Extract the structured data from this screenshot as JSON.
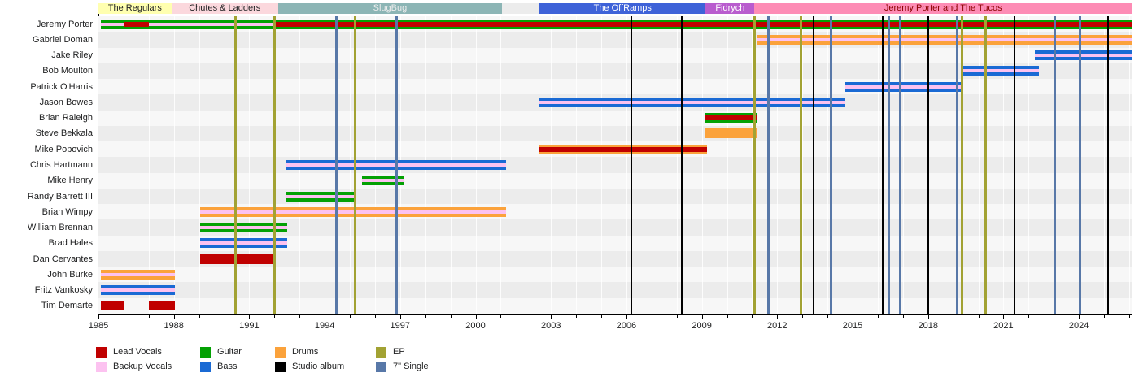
{
  "chart_data": {
    "type": "timeline",
    "description": "Band membership timeline with eras, member tenures by instrument, and release markers",
    "axis": {
      "start": 1985,
      "end": 2026.1,
      "labeled_ticks": [
        1985,
        1988,
        1991,
        1994,
        1997,
        2000,
        2003,
        2006,
        2009,
        2012,
        2015,
        2018,
        2021,
        2024
      ],
      "minor_tick_interval": 1
    },
    "eras": [
      {
        "label": "The Regulars",
        "start": 1985.0,
        "end": 1987.9,
        "bg": "#ffffb0",
        "fg": "#202122"
      },
      {
        "label": "Chutes & Ladders",
        "start": 1987.9,
        "end": 1992.15,
        "bg": "#fbd8dd",
        "fg": "#202122"
      },
      {
        "label": "SlugBug",
        "start": 1992.15,
        "end": 2001.05,
        "bg": "#8cb5b5",
        "fg": "#ededed"
      },
      {
        "label": "The OffRamps",
        "start": 2002.55,
        "end": 2009.15,
        "bg": "#3e62d8",
        "fg": "#ffffff"
      },
      {
        "label": "Fidrych",
        "start": 2009.15,
        "end": 2011.1,
        "bg": "#b95cce",
        "fg": "#ffffff"
      },
      {
        "label": "Jeremy Porter and The Tucos",
        "start": 2011.1,
        "end": 2026.1,
        "bg": "#fd8cb5",
        "fg": "#8b0000"
      }
    ],
    "members": [
      {
        "name": "Jeremy Porter",
        "bars": [
          {
            "role": "guitar",
            "start": 1985.1,
            "end": 2026.1,
            "inner": [
              {
                "role": "backup_vocals",
                "start": 1985.1,
                "end": 1992.05
              },
              {
                "role": "lead_vocals",
                "start": 1986.0,
                "end": 1987.0
              },
              {
                "role": "lead_vocals",
                "start": 1992.05,
                "end": 2026.1
              }
            ]
          }
        ]
      },
      {
        "name": "Gabriel Doman",
        "bars": [
          {
            "role": "drums",
            "start": 2011.2,
            "end": 2026.1,
            "inner": [
              {
                "role": "backup_vocals",
                "start": 2011.2,
                "end": 2026.1
              }
            ]
          }
        ]
      },
      {
        "name": "Jake Riley",
        "bars": [
          {
            "role": "bass",
            "start": 2022.25,
            "end": 2026.1,
            "inner": [
              {
                "role": "backup_vocals",
                "start": 2022.25,
                "end": 2026.1
              }
            ]
          }
        ]
      },
      {
        "name": "Bob Moulton",
        "bars": [
          {
            "role": "bass",
            "start": 2019.3,
            "end": 2022.4,
            "inner": [
              {
                "role": "backup_vocals",
                "start": 2019.3,
                "end": 2022.4
              }
            ]
          }
        ]
      },
      {
        "name": "Patrick O'Harris",
        "bars": [
          {
            "role": "bass",
            "start": 2014.7,
            "end": 2019.4,
            "inner": [
              {
                "role": "backup_vocals",
                "start": 2014.7,
                "end": 2019.4
              }
            ]
          }
        ]
      },
      {
        "name": "Jason Bowes",
        "bars": [
          {
            "role": "bass",
            "start": 2002.55,
            "end": 2014.7,
            "inner": [
              {
                "role": "backup_vocals",
                "start": 2002.55,
                "end": 2014.7
              }
            ]
          }
        ]
      },
      {
        "name": "Brian Raleigh",
        "bars": [
          {
            "role": "guitar",
            "start": 2009.15,
            "end": 2011.2,
            "inner": [
              {
                "role": "lead_vocals",
                "start": 2009.15,
                "end": 2011.2
              }
            ]
          }
        ]
      },
      {
        "name": "Steve Bekkala",
        "bars": [
          {
            "role": "drums",
            "start": 2009.15,
            "end": 2011.2,
            "inner": []
          }
        ]
      },
      {
        "name": "Mike Popovich",
        "bars": [
          {
            "role": "drums",
            "start": 2002.55,
            "end": 2009.2,
            "inner": [
              {
                "role": "lead_vocals",
                "start": 2002.55,
                "end": 2009.2
              }
            ]
          }
        ]
      },
      {
        "name": "Chris Hartmann",
        "bars": [
          {
            "role": "bass",
            "start": 1992.45,
            "end": 2001.2,
            "inner": [
              {
                "role": "backup_vocals",
                "start": 1992.45,
                "end": 2001.2
              }
            ]
          }
        ]
      },
      {
        "name": "Mike Henry",
        "bars": [
          {
            "role": "guitar",
            "start": 1995.5,
            "end": 1997.15,
            "inner": [
              {
                "role": "backup_vocals",
                "start": 1995.5,
                "end": 1997.15
              }
            ]
          }
        ]
      },
      {
        "name": "Randy Barrett III",
        "bars": [
          {
            "role": "guitar",
            "start": 1992.45,
            "end": 1995.25,
            "inner": [
              {
                "role": "backup_vocals",
                "start": 1992.45,
                "end": 1995.25
              }
            ]
          }
        ]
      },
      {
        "name": "Brian Wimpy",
        "bars": [
          {
            "role": "drums",
            "start": 1989.05,
            "end": 2001.2,
            "inner": [
              {
                "role": "backup_vocals",
                "start": 1989.05,
                "end": 2001.2
              }
            ]
          }
        ]
      },
      {
        "name": "William Brennan",
        "bars": [
          {
            "role": "guitar",
            "start": 1989.05,
            "end": 1992.5,
            "inner": [
              {
                "role": "backup_vocals",
                "start": 1989.05,
                "end": 1992.5
              }
            ]
          }
        ]
      },
      {
        "name": "Brad Hales",
        "bars": [
          {
            "role": "bass",
            "start": 1989.05,
            "end": 1992.5,
            "inner": [
              {
                "role": "backup_vocals",
                "start": 1989.05,
                "end": 1992.5
              }
            ]
          }
        ]
      },
      {
        "name": "Dan Cervantes",
        "bars": [
          {
            "role": "lead_vocals",
            "start": 1989.05,
            "end": 1992.05,
            "inner": []
          }
        ]
      },
      {
        "name": "John Burke",
        "bars": [
          {
            "role": "drums",
            "start": 1985.1,
            "end": 1988.05,
            "inner": [
              {
                "role": "backup_vocals",
                "start": 1985.1,
                "end": 1988.05
              }
            ]
          }
        ]
      },
      {
        "name": "Fritz Vankosky",
        "bars": [
          {
            "role": "bass",
            "start": 1985.1,
            "end": 1988.05,
            "inner": [
              {
                "role": "backup_vocals",
                "start": 1985.1,
                "end": 1988.05
              }
            ]
          }
        ]
      },
      {
        "name": "Tim Demarte",
        "bars": [
          {
            "role": "lead_vocals",
            "start": 1985.1,
            "end": 1986.0,
            "inner": []
          },
          {
            "role": "lead_vocals",
            "start": 1987.0,
            "end": 1988.05,
            "inner": []
          }
        ]
      }
    ],
    "releases": [
      {
        "type": "ep",
        "year": 1990.45
      },
      {
        "type": "ep",
        "year": 1992.02
      },
      {
        "type": "single",
        "year": 1994.45
      },
      {
        "type": "ep",
        "year": 1995.2
      },
      {
        "type": "single",
        "year": 1996.85
      },
      {
        "type": "album",
        "year": 2006.2
      },
      {
        "type": "album",
        "year": 2008.2
      },
      {
        "type": "ep",
        "year": 2011.1
      },
      {
        "type": "single",
        "year": 2011.65
      },
      {
        "type": "ep",
        "year": 2012.95
      },
      {
        "type": "album",
        "year": 2013.45
      },
      {
        "type": "single",
        "year": 2014.15
      },
      {
        "type": "album",
        "year": 2016.2
      },
      {
        "type": "single",
        "year": 2016.45
      },
      {
        "type": "single",
        "year": 2016.9
      },
      {
        "type": "album",
        "year": 2018.0
      },
      {
        "type": "single",
        "year": 2019.15
      },
      {
        "type": "ep",
        "year": 2019.35
      },
      {
        "type": "ep",
        "year": 2020.3
      },
      {
        "type": "album",
        "year": 2021.45
      },
      {
        "type": "single",
        "year": 2023.05
      },
      {
        "type": "single",
        "year": 2024.05
      },
      {
        "type": "album",
        "year": 2025.15
      }
    ],
    "colors": {
      "lead_vocals": "#c00000",
      "backup_vocals": "#fcc2f0",
      "guitar": "#04a104",
      "bass": "#1a6ad4",
      "drums": "#fba23b",
      "album": "#000000",
      "ep": "#a2a233",
      "single": "#5878a8"
    },
    "legend": {
      "rows": [
        [
          {
            "label": "Lead Vocals",
            "color_key": "lead_vocals"
          },
          {
            "label": "Guitar",
            "color_key": "guitar"
          },
          {
            "label": "Drums",
            "color_key": "drums"
          },
          {
            "label": "EP",
            "color_key": "ep"
          }
        ],
        [
          {
            "label": "Backup Vocals",
            "color_key": "backup_vocals"
          },
          {
            "label": "Bass",
            "color_key": "bass"
          },
          {
            "label": "Studio album",
            "color_key": "album"
          },
          {
            "label": "7\" Single",
            "color_key": "single"
          }
        ]
      ]
    }
  }
}
